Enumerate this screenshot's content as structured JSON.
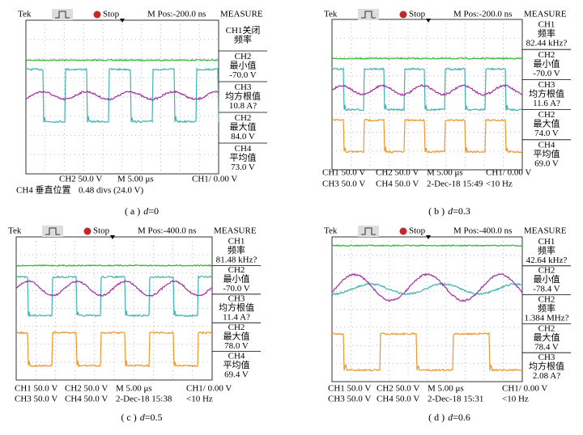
{
  "panels": [
    {
      "header": {
        "brand": "Tek",
        "status": "Stop",
        "position": "M Pos:-200.0 ns",
        "measure_title": "MEASURE"
      },
      "measurements": [
        [
          "CH1关闭",
          "频率"
        ],
        [
          "CH2",
          "最小值",
          "-70.0 V"
        ],
        [
          "CH3",
          "均方根值",
          "10.8 A?"
        ],
        [
          "CH2",
          "最大值",
          "84.0 V"
        ],
        [
          "CH4",
          "平均值",
          "73.0 V"
        ]
      ],
      "footer": [
        [
          "CH2 50.0 V",
          "M 5.00 μs",
          "CH1/ 0.00 V"
        ],
        [
          "CH4 垂直位置",
          "0.48 divs (24.0 V)"
        ]
      ],
      "caption": {
        "label": "( a )",
        "variable": "d",
        "value": "=0"
      }
    },
    {
      "header": {
        "brand": "Tek",
        "status": "Stop",
        "position": "M Pos:-200.0 ns",
        "measure_title": "MEASURE"
      },
      "measurements": [
        [
          "CH1",
          "频率",
          "82.44 kHz?"
        ],
        [
          "CH2",
          "最小值",
          "-70.0 V"
        ],
        [
          "CH3",
          "均方根值",
          "11.6 A?"
        ],
        [
          "CH2",
          "最大值",
          "74.0 V"
        ],
        [
          "CH4",
          "平均值",
          "69.0 V"
        ]
      ],
      "footer": [
        [
          "CH1 50.0 V",
          "CH2 50.0 V",
          "M 5.00 μs",
          "CH1/ 0.00 V"
        ],
        [
          "CH3 50.0 V",
          "CH4 50.0 V",
          "2-Dec-18 15:49",
          "<10 Hz"
        ]
      ],
      "caption": {
        "label": "( b )",
        "variable": "d",
        "value": "=0.3"
      }
    },
    {
      "header": {
        "brand": "Tek",
        "status": "Stop",
        "position": "M Pos:-400.0 ns",
        "measure_title": "MEASURE"
      },
      "measurements": [
        [
          "CH1",
          "频率",
          "81.48 kHz?"
        ],
        [
          "CH2",
          "最小值",
          "-70.0 V"
        ],
        [
          "CH3",
          "均方根值",
          "11.4 A?"
        ],
        [
          "CH2",
          "最大值",
          "78.0 V"
        ],
        [
          "CH4",
          "平均值",
          "69.4 V"
        ]
      ],
      "footer": [
        [
          "CH1 50.0 V",
          "CH2 50.0 V",
          "M 5.00 μs",
          "CH1/ 0.00 V"
        ],
        [
          "CH3 50.0 V",
          "CH4 50.0 V",
          "2-Dec-18 15:38",
          "<10 Hz"
        ]
      ],
      "caption": {
        "label": "( c )",
        "variable": "d",
        "value": "=0.5"
      }
    },
    {
      "header": {
        "brand": "Tek",
        "status": "Stop",
        "position": "M Pos:-400.0 ns",
        "measure_title": "MEASURE"
      },
      "measurements": [
        [
          "CH1",
          "频率",
          "42.64 kHz?"
        ],
        [
          "CH2",
          "最小值",
          "-78.4 V"
        ],
        [
          "CH2",
          "频率",
          "1.384 MHz?"
        ],
        [
          "CH2",
          "最大值",
          "78.4 V"
        ],
        [
          "CH3",
          "均方根值",
          "2.08 A?"
        ]
      ],
      "footer": [
        [
          "CH1 50.0 V",
          "CH2 50.0 V",
          "M 5.00 μs",
          "CH1/ 0.00 V"
        ],
        [
          "CH3 50.0 V",
          "CH4 50.0 V",
          "2-Dec-18 15:31",
          "<10 Hz"
        ]
      ],
      "caption": {
        "label": "( d )",
        "variable": "d",
        "value": "=0.6"
      }
    }
  ]
}
